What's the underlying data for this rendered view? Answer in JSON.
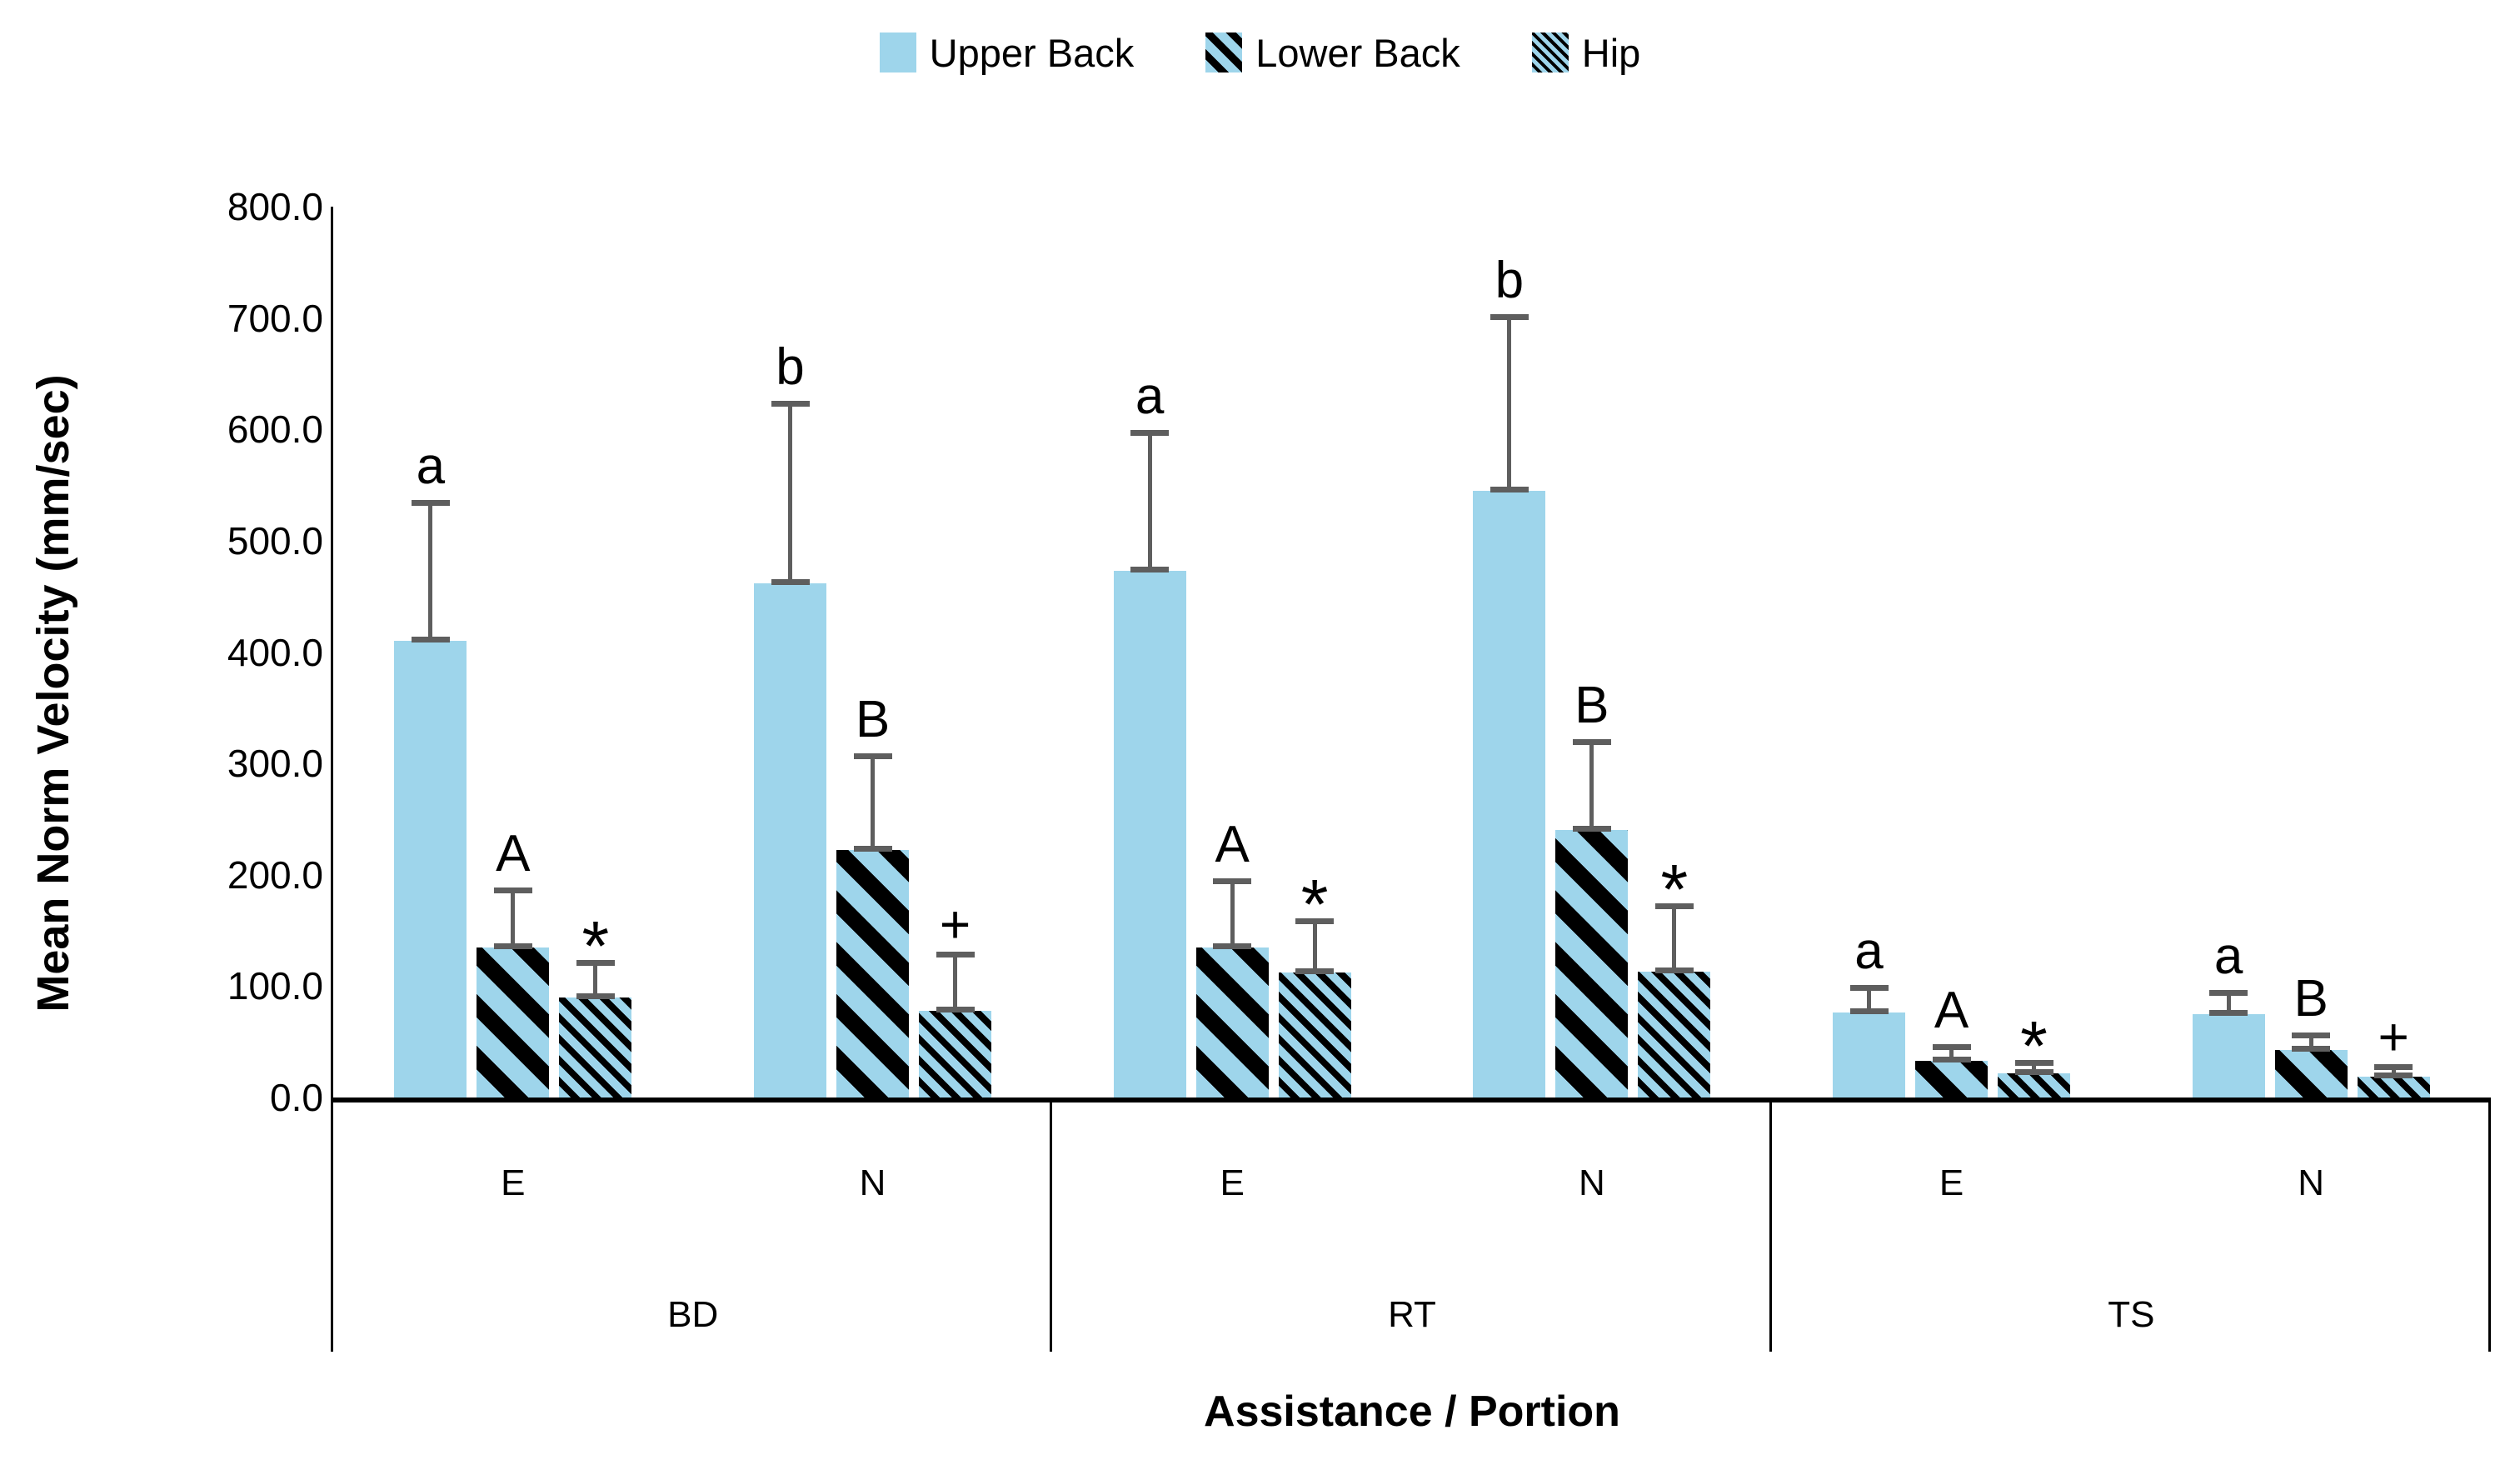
{
  "chart_data": {
    "type": "bar",
    "title": "",
    "ylabel": "Mean Norm Velocity (mm/sec)",
    "xlabel": "Assistance / Portion",
    "ylim": [
      0,
      800
    ],
    "yticks": [
      0,
      100,
      200,
      300,
      400,
      500,
      600,
      700,
      800
    ],
    "ytick_labels": [
      "0.0",
      "100.0",
      "200.0",
      "300.0",
      "400.0",
      "500.0",
      "600.0",
      "700.0",
      "800.0"
    ],
    "groups": [
      "BD",
      "RT",
      "TS"
    ],
    "subgroups": [
      "E",
      "N"
    ],
    "categories": [
      "BD E",
      "BD N",
      "RT E",
      "RT N",
      "TS E",
      "TS N"
    ],
    "grid": false,
    "legend_position": "top",
    "error_bars": "plus-sd-with-caps",
    "series": [
      {
        "name": "Upper Back",
        "pattern": "solid",
        "values": [
          410,
          462,
          473,
          545,
          76,
          75
        ],
        "errors": [
          123,
          160,
          123,
          155,
          21,
          18
        ],
        "annotations": [
          "a",
          "b",
          "a",
          "b",
          "a",
          "a"
        ]
      },
      {
        "name": "Lower Back",
        "pattern": "thick-diagonal-stripes",
        "values": [
          135,
          222,
          135,
          240,
          33,
          43
        ],
        "errors": [
          50,
          83,
          58,
          78,
          11,
          12
        ],
        "annotations": [
          "A",
          "B",
          "A",
          "B",
          "A",
          "B"
        ]
      },
      {
        "name": "Hip",
        "pattern": "thin-diagonal-stripes",
        "values": [
          90,
          78,
          112,
          113,
          22,
          19
        ],
        "errors": [
          30,
          49,
          45,
          58,
          8,
          7
        ],
        "annotations": [
          "*",
          "+",
          "*",
          "*",
          "*",
          "+"
        ]
      }
    ],
    "colors": {
      "bar_fill": "#9ED5EB",
      "stripe": "#000000",
      "error_bar": "#5E5E5E",
      "axis": "#000000",
      "text": "#000000",
      "background": "#FFFFFF"
    }
  }
}
